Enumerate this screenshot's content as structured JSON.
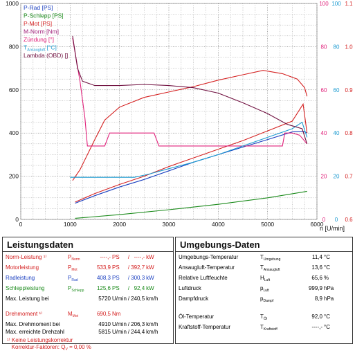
{
  "chart_data": {
    "type": "line",
    "xlabel": "n [U/min]",
    "x_ticks": [
      0,
      1000,
      2000,
      3000,
      4000,
      5000,
      6000
    ],
    "xlim": [
      0,
      6000
    ],
    "left_axis": {
      "ylim": [
        0,
        1000
      ],
      "ticks": [
        0,
        200,
        400,
        600,
        800,
        1000
      ]
    },
    "right_axes": [
      {
        "name": "Zündung",
        "ticks": [
          "0",
          "20",
          "40",
          "60",
          "80",
          "100"
        ],
        "color": "#e0207a"
      },
      {
        "name": "Ansaugluft",
        "ticks": [
          "0",
          "20",
          "40",
          "60",
          "80",
          "100"
        ],
        "color": "#1a9ad0"
      },
      {
        "name": "Lambda",
        "ticks": [
          "0.6",
          "0.7",
          "0.8",
          "0.9",
          "1.0",
          "1.1"
        ],
        "color": "#d42020"
      }
    ],
    "legend": [
      {
        "label": "P-Rad [PS]",
        "color": "#1a3fc0"
      },
      {
        "label": "P-Schlepp [PS]",
        "color": "#1a8a1a"
      },
      {
        "label": "P-Mot [PS]",
        "color": "#d42020"
      },
      {
        "label": "M-Norm [Nm]",
        "color": "#a0207a"
      },
      {
        "label": "Zündung [°]",
        "color": "#e0207a"
      },
      {
        "label": "T",
        "sub": "Ansaugluft",
        "suffix": " [°C]",
        "color": "#1a9ad0"
      },
      {
        "label": "Lambda (OBD) []",
        "color": "#701040"
      }
    ],
    "series": [
      {
        "name": "P-Rad [PS]",
        "color": "#1a3fc0",
        "points": [
          [
            1100,
            75
          ],
          [
            1500,
            110
          ],
          [
            2000,
            150
          ],
          [
            2500,
            185
          ],
          [
            3000,
            225
          ],
          [
            3500,
            265
          ],
          [
            4000,
            300
          ],
          [
            4500,
            335
          ],
          [
            5000,
            370
          ],
          [
            5500,
            405
          ],
          [
            5720,
            408
          ],
          [
            5800,
            400
          ]
        ]
      },
      {
        "name": "P-Schlepp [PS]",
        "color": "#1a8a1a",
        "points": [
          [
            1100,
            5
          ],
          [
            2000,
            22
          ],
          [
            3000,
            45
          ],
          [
            4000,
            70
          ],
          [
            5000,
            100
          ],
          [
            5800,
            130
          ]
        ]
      },
      {
        "name": "P-Mot [PS]",
        "color": "#d42020",
        "points": [
          [
            1100,
            80
          ],
          [
            1500,
            120
          ],
          [
            2000,
            162
          ],
          [
            2500,
            200
          ],
          [
            3000,
            245
          ],
          [
            3500,
            285
          ],
          [
            4000,
            325
          ],
          [
            4500,
            365
          ],
          [
            5000,
            410
          ],
          [
            5500,
            455
          ],
          [
            5720,
            534
          ],
          [
            5800,
            400
          ]
        ]
      },
      {
        "name": "M-Norm [Nm]",
        "color": "#d42020",
        "points": [
          [
            1050,
            180
          ],
          [
            1200,
            230
          ],
          [
            1500,
            370
          ],
          [
            1700,
            460
          ],
          [
            2000,
            520
          ],
          [
            2500,
            565
          ],
          [
            3000,
            590
          ],
          [
            3500,
            615
          ],
          [
            4000,
            645
          ],
          [
            4500,
            670
          ],
          [
            4910,
            690
          ],
          [
            5300,
            675
          ],
          [
            5600,
            650
          ],
          [
            5750,
            610
          ],
          [
            5800,
            570
          ]
        ]
      },
      {
        "name": "Zündung [°]",
        "color": "#e0207a",
        "points": [
          [
            1050,
            840
          ],
          [
            1200,
            640
          ],
          [
            1300,
            470
          ],
          [
            1350,
            340
          ],
          [
            1500,
            340
          ],
          [
            1700,
            340
          ],
          [
            1800,
            400
          ],
          [
            2700,
            400
          ],
          [
            2800,
            340
          ],
          [
            5300,
            340
          ],
          [
            5350,
            400
          ],
          [
            5500,
            400
          ],
          [
            5650,
            390
          ],
          [
            5800,
            350
          ]
        ]
      },
      {
        "name": "T_Ansaugluft [°C]",
        "color": "#1a9ad0",
        "points": [
          [
            1000,
            195
          ],
          [
            2300,
            195
          ],
          [
            2600,
            210
          ],
          [
            3000,
            235
          ],
          [
            3500,
            265
          ],
          [
            4000,
            300
          ],
          [
            4500,
            340
          ],
          [
            5000,
            380
          ],
          [
            5500,
            420
          ],
          [
            5700,
            450
          ],
          [
            5800,
            380
          ]
        ]
      },
      {
        "name": "Lambda (OBD) []",
        "color": "#701040",
        "points": [
          [
            1050,
            850
          ],
          [
            1150,
            700
          ],
          [
            1250,
            640
          ],
          [
            1500,
            620
          ],
          [
            2000,
            620
          ],
          [
            2500,
            625
          ],
          [
            3000,
            620
          ],
          [
            3500,
            610
          ],
          [
            4000,
            585
          ],
          [
            4500,
            540
          ],
          [
            5000,
            490
          ],
          [
            5400,
            440
          ],
          [
            5700,
            420
          ],
          [
            5800,
            350
          ]
        ]
      }
    ]
  },
  "leistungsdaten": {
    "title": "Leistungsdaten",
    "rows": [
      {
        "label": "Norm-Leistung ¹⁾",
        "sym": "P",
        "sub": "Norm",
        "v1": "----,-",
        "u1": "PS",
        "sep": "/",
        "v2": "----,-",
        "u2": "kW",
        "color": "red"
      },
      {
        "label": "Motorleistung",
        "sym": "P",
        "sub": "Mot",
        "v1": "533,9",
        "u1": "PS",
        "sep": "/",
        "v2": "392,7",
        "u2": "kW",
        "color": "red"
      },
      {
        "label": "Radleistung",
        "sym": "P",
        "sub": "Rad",
        "v1": "408,3",
        "u1": "PS",
        "sep": "/",
        "v2": "300,3",
        "u2": "kW",
        "color": "blue"
      },
      {
        "label": "Schleppleistung",
        "sym": "P",
        "sub": "Schlepp",
        "v1": "125,6",
        "u1": "PS",
        "sep": "/",
        "v2": "92,4",
        "u2": "kW",
        "color": "green"
      },
      {
        "label": "Max. Leistung bei",
        "sym": "",
        "sub": "",
        "v1": "5720",
        "u1": "U/min",
        "sep": "/",
        "v2": "240,5",
        "u2": "km/h",
        "color": ""
      },
      {
        "label": "",
        "sym": "",
        "sub": "",
        "v1": "",
        "u1": "",
        "sep": "",
        "v2": "",
        "u2": "",
        "color": ""
      },
      {
        "label": "Drehmoment ¹⁾",
        "sym": "M",
        "sub": "Mot",
        "v1": "690,5",
        "u1": "Nm",
        "sep": "",
        "v2": "",
        "u2": "",
        "color": "red"
      },
      {
        "label": "Max. Drehmoment bei",
        "sym": "",
        "sub": "",
        "v1": "4910",
        "u1": "U/min",
        "sep": "/",
        "v2": "206,3",
        "u2": "km/h",
        "color": ""
      },
      {
        "label": "Max. erreichte Drehzahl",
        "sym": "",
        "sub": "",
        "v1": "5815",
        "u1": "U/min",
        "sep": "/",
        "v2": "244,4",
        "u2": "km/h",
        "color": ""
      }
    ],
    "note1": "¹⁾ Keine Leistungskorrektur",
    "note2_label": "Korrektur-Faktoren:",
    "note2_sym": "Q",
    "note2_sub": "V",
    "note2_value": "= 0,00 %"
  },
  "umgebungsdaten": {
    "title": "Umgebungs-Daten",
    "rows": [
      {
        "label": "Umgebungs-Temperatur",
        "sym": "T",
        "sub": "Umgebung",
        "value": "11,4",
        "unit": "°C"
      },
      {
        "label": "Ansaugluft-Temperatur",
        "sym": "T",
        "sub": "Ansaugluft",
        "value": "13,6",
        "unit": "°C"
      },
      {
        "label": "Relative Luftfeuchte",
        "sym": "H",
        "sub": "Luft",
        "value": "65,6",
        "unit": "%"
      },
      {
        "label": "Luftdruck",
        "sym": "p",
        "sub": "Luft",
        "value": "999,9",
        "unit": "hPa"
      },
      {
        "label": "Dampfdruck",
        "sym": "p",
        "sub": "Dampf",
        "value": "8,9",
        "unit": "hPa"
      },
      {
        "label": "",
        "sym": "",
        "sub": "",
        "value": "",
        "unit": ""
      },
      {
        "label": "Öl-Temperatur",
        "sym": "T",
        "sub": "Öl",
        "value": "92,0",
        "unit": "°C"
      },
      {
        "label": "Kraftstoff-Temperatur",
        "sym": "T",
        "sub": "Kraftstoff",
        "value": "----,-",
        "unit": "°C"
      }
    ]
  }
}
